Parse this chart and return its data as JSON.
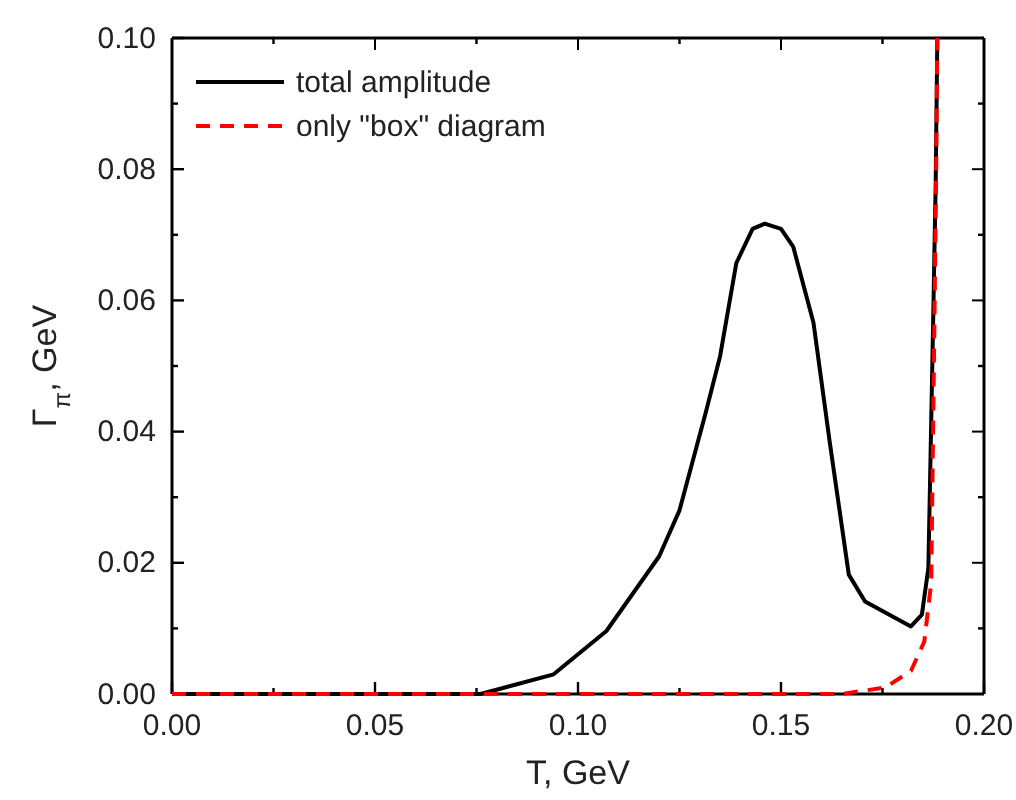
{
  "chart_data": {
    "type": "line",
    "xlabel": "T, GeV",
    "ylabel": "Γ$_{π}$, GeV",
    "xlim": [
      0,
      0.2
    ],
    "ylim": [
      0,
      0.1
    ],
    "xticks": [
      {
        "value": 0,
        "label": "0.00"
      },
      {
        "value": 0.05,
        "label": "0.05"
      },
      {
        "value": 0.1,
        "label": "0.10"
      },
      {
        "value": 0.15,
        "label": "0.15"
      },
      {
        "value": 0.2,
        "label": "0.20"
      }
    ],
    "yticks": [
      {
        "value": 0,
        "label": "0.00"
      },
      {
        "value": 0.02,
        "label": "0.02"
      },
      {
        "value": 0.04,
        "label": "0.04"
      },
      {
        "value": 0.06,
        "label": "0.06"
      },
      {
        "value": 0.08,
        "label": "0.08"
      },
      {
        "value": 0.1,
        "label": "0.10"
      }
    ],
    "grid": false,
    "legend": "top left",
    "marker": "none",
    "series": [
      {
        "name": "total amplitude",
        "color": "#000000",
        "line_style": "solid",
        "x": [
          0,
          0.076,
          0.094,
          0.107,
          0.12,
          0.125,
          0.1315,
          0.135,
          0.139,
          0.143,
          0.146,
          0.15,
          0.153,
          0.158,
          0.162,
          0.1667,
          0.1707,
          0.182,
          0.1847,
          0.1863,
          0.1875,
          0.1881,
          0.1885
        ],
        "values": [
          0,
          0,
          0.003,
          0.0096,
          0.021,
          0.028,
          0.043,
          0.0515,
          0.0657,
          0.0709,
          0.0717,
          0.0709,
          0.0682,
          0.0566,
          0.0384,
          0.0182,
          0.0141,
          0.0103,
          0.0121,
          0.0192,
          0.0576,
          0.0778,
          0.1
        ]
      },
      {
        "name": "only \"box\" diagram",
        "color": "#ff0000",
        "line_style": "dashed",
        "x": [
          0,
          0.165,
          0.1757,
          0.182,
          0.1853,
          0.187,
          0.1876,
          0.1882,
          0.1885
        ],
        "values": [
          0,
          0,
          0.001,
          0.0035,
          0.008,
          0.017,
          0.047,
          0.078,
          0.1
        ]
      }
    ]
  }
}
